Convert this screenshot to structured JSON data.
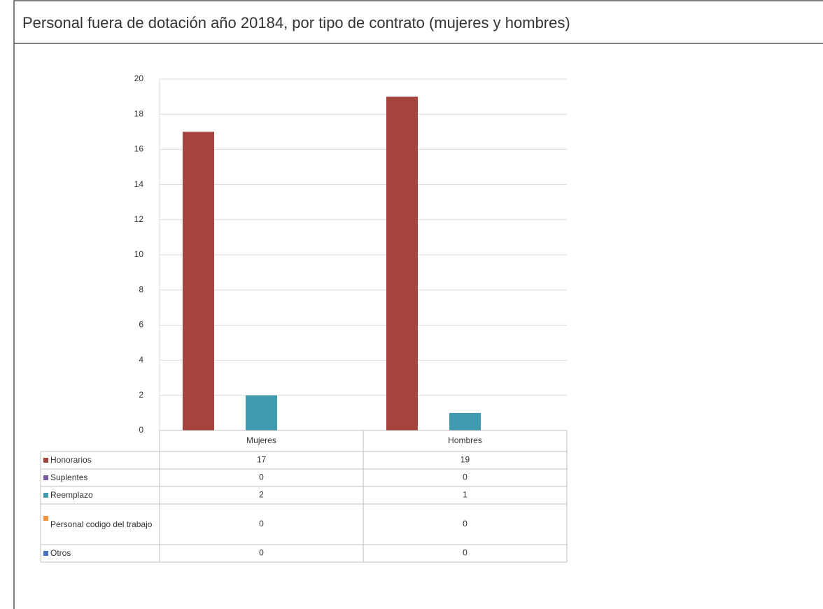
{
  "chart_data": {
    "type": "bar",
    "title": "Personal fuera de dotación año 20184, por tipo de contrato (mujeres y hombres)",
    "categories": [
      "Mujeres",
      "Hombres"
    ],
    "series": [
      {
        "name": "Honorarios",
        "color": "#a5443f",
        "values": [
          17,
          19
        ]
      },
      {
        "name": "Suplentes",
        "color": "#7b5b9e",
        "values": [
          0,
          0
        ]
      },
      {
        "name": "Reemplazo",
        "color": "#3e9bb0",
        "values": [
          2,
          1
        ]
      },
      {
        "name": "Personal codigo del trabajo",
        "color": "#f0953f",
        "values": [
          0,
          0
        ]
      },
      {
        "name": "Otros",
        "color": "#4472c4",
        "values": [
          0,
          0
        ]
      }
    ],
    "ylim": [
      0,
      20
    ],
    "yticks": [
      0,
      2,
      4,
      6,
      8,
      10,
      12,
      14,
      16,
      18,
      20
    ],
    "grid": true
  }
}
